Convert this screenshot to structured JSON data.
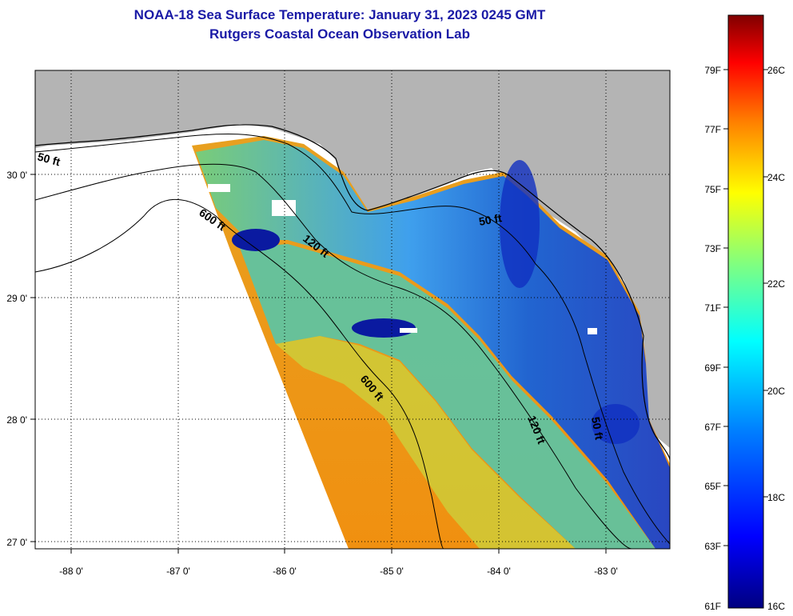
{
  "title": "NOAA-18 Sea Surface Temperature:  January 31, 2023 0245 GMT",
  "subtitle": "Rutgers Coastal Ocean Observation Lab",
  "map": {
    "lon_ticks": [
      "-88 0'",
      "-87 0'",
      "-86 0'",
      "-85 0'",
      "-84 0'",
      "-83 0'"
    ],
    "lat_ticks": [
      "30 0'",
      "29 0'",
      "28 0'",
      "27 0'"
    ],
    "contour_labels": [
      "50 ft",
      "600 ft",
      "120 ft",
      "50 ft",
      "600 ft",
      "120 ft",
      "50 ft"
    ],
    "land_color": "#b4b4b4",
    "grid": true
  },
  "colorbar": {
    "f_labels": [
      "79F",
      "77F",
      "75F",
      "73F",
      "71F",
      "69F",
      "67F",
      "65F",
      "63F",
      "61F"
    ],
    "c_labels": [
      "26C",
      "24C",
      "22C",
      "20C",
      "18C",
      "16C"
    ],
    "stops": [
      "#000080",
      "#0000ff",
      "#0080ff",
      "#00ffff",
      "#80ff80",
      "#ffff00",
      "#ff8000",
      "#ff0000",
      "#800000"
    ]
  }
}
